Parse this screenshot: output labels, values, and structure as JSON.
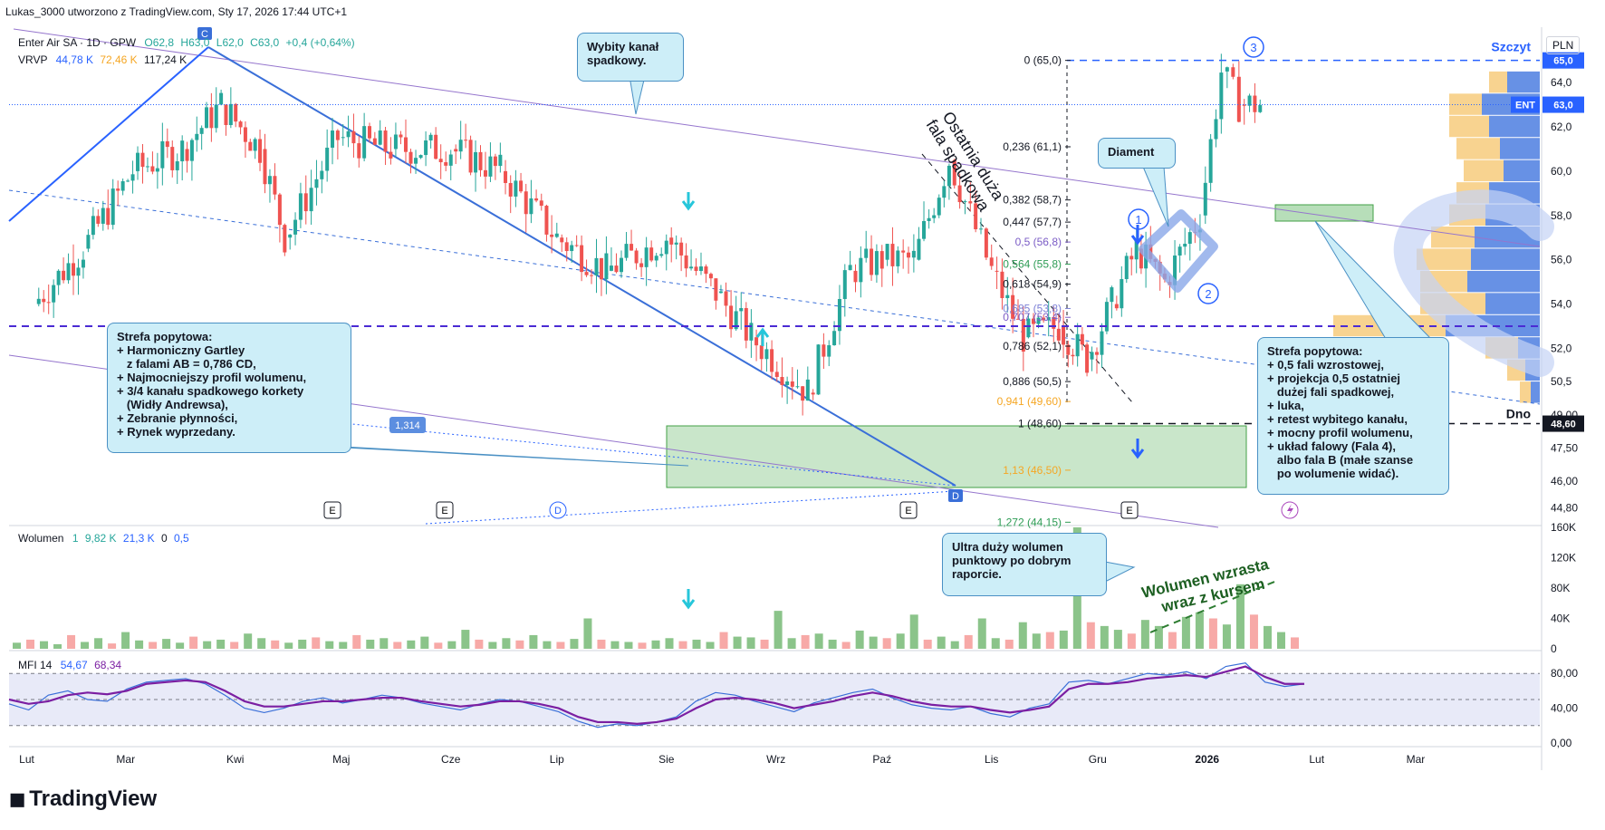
{
  "meta": {
    "snapshot_text": "Lukas_3000 utworzono z TradingView.com, Sty 17, 2026 17:44 UTC+1",
    "brand": "TradingView",
    "currency": "PLN"
  },
  "header": {
    "symbol": "Enter Air SA · 1D · GPW",
    "o": "O62,8",
    "h": "H63,0",
    "l": "L62,0",
    "c": "C63,0",
    "change": "+0,4 (+0,64%)",
    "vrvp_label": "VRVP",
    "vrvp_v1": "44,78 K",
    "vrvp_v2": "72,46 K",
    "vrvp_v3": "117,24 K",
    "volume_label": "Wolumen",
    "volume_len": "1",
    "volume_v1": "9,82 K",
    "volume_v2": "21,3 K",
    "volume_v3": "0",
    "volume_v4": "0,5",
    "mfi_label": "MFI 14",
    "mfi_v1": "54,67",
    "mfi_v2": "68,34"
  },
  "chart_data": [
    {
      "type": "line",
      "title": "Enter Air SA · 1D · GPW",
      "x_tick_labels": [
        "Lut",
        "Mar",
        "Kwi",
        "Maj",
        "Cze",
        "Lip",
        "Sie",
        "Wrz",
        "Paź",
        "Lis",
        "Gru",
        "2026",
        "Lut",
        "Mar"
      ],
      "y_tick_labels": [
        "64,0",
        "62,0",
        "60,0",
        "58,0",
        "56,0",
        "54,0",
        "52,0",
        "50,5",
        "49,00",
        "47,50",
        "46,00",
        "44,80"
      ],
      "ylim": [
        44.0,
        66.5
      ],
      "series": [
        {
          "name": "ENT",
          "x": [
            "2025-02-03",
            "2025-02-17",
            "2025-03-03",
            "2025-03-17",
            "2025-03-28",
            "2025-04-08",
            "2025-04-15",
            "2025-04-30",
            "2025-05-15",
            "2025-06-01",
            "2025-06-15",
            "2025-07-01",
            "2025-07-15",
            "2025-08-01",
            "2025-08-15",
            "2025-08-25",
            "2025-09-10",
            "2025-09-22",
            "2025-10-01",
            "2025-10-10",
            "2025-10-20",
            "2025-11-01",
            "2025-11-10",
            "2025-11-20",
            "2025-11-28",
            "2025-12-05",
            "2025-12-12",
            "2025-12-20",
            "2025-12-30",
            "2026-01-05",
            "2026-01-10",
            "2026-01-16"
          ],
          "values": [
            54.0,
            56.5,
            60.0,
            61.0,
            63.0,
            61.0,
            57.0,
            61.5,
            61.0,
            61.0,
            60.0,
            57.0,
            55.5,
            57.0,
            54.5,
            52.5,
            50.0,
            55.5,
            56.0,
            56.0,
            60.5,
            55.5,
            52.5,
            53.0,
            51.5,
            54.0,
            56.5,
            55.0,
            58.0,
            64.5,
            63.0,
            63.0
          ]
        }
      ],
      "last_price": "63,0",
      "fib_levels": [
        {
          "label": "0 (65,0)",
          "value": 65.0,
          "color": "#131722"
        },
        {
          "label": "0,236 (61,1)",
          "value": 61.1,
          "color": "#131722"
        },
        {
          "label": "0,382 (58,7)",
          "value": 58.7,
          "color": "#131722"
        },
        {
          "label": "0,447 (57,7)",
          "value": 57.7,
          "color": "#131722"
        },
        {
          "label": "0,5 (56,8)",
          "value": 56.8,
          "color": "#7b5cc6"
        },
        {
          "label": "0,564 (55,8)",
          "value": 55.8,
          "color": "#2e9c55"
        },
        {
          "label": "0,618 (54,9)",
          "value": 54.9,
          "color": "#131722"
        },
        {
          "label": "0,685 (53,8)",
          "value": 53.8,
          "color": "#7b7fd6"
        },
        {
          "label": "0,707 (53,4)",
          "value": 53.4,
          "color": "#7b5cc6"
        },
        {
          "label": "0,786 (52,1)",
          "value": 52.1,
          "color": "#131722"
        },
        {
          "label": "0,886 (50,5)",
          "value": 50.5,
          "color": "#131722"
        },
        {
          "label": "0,941 (49,60)",
          "value": 49.6,
          "color": "#f5a623"
        },
        {
          "label": "1 (48,60)",
          "value": 48.6,
          "color": "#131722"
        },
        {
          "label": "1,13 (46,50)",
          "value": 46.5,
          "color": "#f5a623"
        },
        {
          "label": "1,272 (44,15)",
          "value": 44.15,
          "color": "#2e9c55"
        }
      ],
      "price_tags": [
        {
          "text": "65,0",
          "value": 65.0,
          "color": "#2962ff"
        },
        {
          "text": "63,0",
          "value": 63.0,
          "color": "#2962ff"
        },
        {
          "text": "48,60",
          "value": 48.6,
          "color": "#131722"
        }
      ],
      "ent_tag": "ENT",
      "dashed_levels": [
        {
          "value": 65.0,
          "color": "#2962ff",
          "label": "Szczyt"
        },
        {
          "value": 48.6,
          "color": "#131722",
          "label": "Dno"
        },
        {
          "value": 53.0,
          "color": "#4b2bd4",
          "label": ""
        }
      ],
      "pattern_points": [
        {
          "label": "C",
          "date": "2025-03-28"
        },
        {
          "label": "D",
          "date": "2025-10-25"
        }
      ],
      "ratio_label": "1,314",
      "wave_labels": [
        "1",
        "2",
        "3"
      ],
      "event_markers": [
        "E",
        "E",
        "D",
        "E",
        "E"
      ],
      "vrvp_profile": [
        {
          "price": 64.0,
          "up": 0.1,
          "down": 0.18
        },
        {
          "price": 63.0,
          "up": 0.18,
          "down": 0.32
        },
        {
          "price": 62.0,
          "up": 0.22,
          "down": 0.28
        },
        {
          "price": 61.0,
          "up": 0.24,
          "down": 0.22
        },
        {
          "price": 60.0,
          "up": 0.22,
          "down": 0.2
        },
        {
          "price": 59.0,
          "up": 0.18,
          "down": 0.28
        },
        {
          "price": 58.0,
          "up": 0.2,
          "down": 0.3
        },
        {
          "price": 57.0,
          "up": 0.24,
          "down": 0.36
        },
        {
          "price": 56.0,
          "up": 0.3,
          "down": 0.38
        },
        {
          "price": 55.0,
          "up": 0.26,
          "down": 0.4
        },
        {
          "price": 54.0,
          "up": 0.36,
          "down": 0.3
        },
        {
          "price": 53.0,
          "up": 0.62,
          "down": 0.52
        },
        {
          "price": 52.0,
          "up": 0.18,
          "down": 0.12
        },
        {
          "price": 51.0,
          "up": 0.1,
          "down": 0.08
        },
        {
          "price": 50.0,
          "up": 0.06,
          "down": 0.05
        }
      ]
    },
    {
      "type": "bar",
      "title": "Wolumen",
      "y_tick_labels": [
        "160K",
        "120K",
        "80K",
        "40K",
        "0"
      ],
      "ylim": [
        0,
        160
      ],
      "note": "Volume bars (thousands), sampled",
      "values": [
        8,
        12,
        10,
        6,
        18,
        9,
        14,
        7,
        22,
        11,
        9,
        13,
        8,
        16,
        10,
        12,
        9,
        20,
        14,
        11,
        8,
        12,
        15,
        10,
        9,
        18,
        12,
        14,
        9,
        11,
        16,
        8,
        10,
        25,
        12,
        9,
        14,
        11,
        18,
        10,
        9,
        13,
        40,
        12,
        10,
        9,
        8,
        11,
        14,
        10,
        12,
        9,
        22,
        16,
        15,
        12,
        50,
        14,
        18,
        20,
        12,
        9,
        24,
        16,
        14,
        20,
        45,
        12,
        16,
        10,
        18,
        40,
        14,
        12,
        35,
        20,
        22,
        24,
        160,
        35,
        30,
        25,
        20,
        38,
        30,
        22,
        42,
        48,
        40,
        32,
        85,
        45,
        30,
        22,
        15
      ]
    },
    {
      "type": "line",
      "title": "MFI 14",
      "y_tick_labels": [
        "80,00",
        "40,00",
        "0,00"
      ],
      "ylim": [
        0,
        100
      ],
      "series": [
        {
          "name": "MFI",
          "values": [
            45,
            38,
            55,
            60,
            50,
            48,
            62,
            70,
            72,
            74,
            68,
            55,
            40,
            35,
            40,
            48,
            52,
            46,
            50,
            55,
            52,
            46,
            42,
            38,
            45,
            50,
            48,
            42,
            36,
            25,
            18,
            22,
            20,
            24,
            30,
            48,
            58,
            55,
            48,
            42,
            36,
            46,
            52,
            58,
            62,
            52,
            44,
            40,
            38,
            42,
            34,
            30,
            40,
            45,
            70,
            72,
            68,
            74,
            80,
            78,
            82,
            74,
            88,
            92,
            70,
            65,
            68
          ]
        },
        {
          "name": "Średnia",
          "values": [
            50,
            45,
            48,
            55,
            58,
            56,
            60,
            68,
            70,
            72,
            70,
            60,
            48,
            42,
            42,
            45,
            48,
            48,
            50,
            52,
            52,
            48,
            45,
            42,
            44,
            48,
            48,
            45,
            40,
            30,
            24,
            24,
            22,
            24,
            28,
            40,
            50,
            52,
            50,
            46,
            40,
            44,
            48,
            54,
            58,
            54,
            48,
            44,
            42,
            42,
            38,
            35,
            38,
            42,
            62,
            68,
            68,
            70,
            74,
            76,
            78,
            76,
            82,
            88,
            76,
            68,
            68
          ]
        }
      ]
    }
  ],
  "annotations": {
    "wybity": "Wybity kanał\nspadkowy.",
    "diament": "Diament",
    "fala": "Ostatnia duża\nfala spadkowa",
    "strefa1": "Strefa popytowa:\n+ Harmoniczny Gartley\n   z falami AB = 0,786 CD,\n+ Najmocniejszy profil wolumenu,\n+ 3/4 kanału spadkowego korkety\n   (Widły Andrewsa),\n+ Zebranie płynności,\n+ Rynek wyprzedany.",
    "strefa2": "Strefa popytowa:\n+ 0,5 fali wzrostowej,\n+ projekcja 0,5 ostatniej\n   dużej fali spadkowej,\n+ luka,\n+ retest wybitego kanału,\n+ mocny profil wolumenu,\n+ układ falowy (Fala 4),\n   albo fala B (małe szanse\n   po wolumenie widać).",
    "volume_note": "Ultra duży wolumen\npunktowy po dobrym\nraporcie.",
    "volume_rising": "Wolumen wzrasta\nwraz z kursem"
  },
  "colors": {
    "bull": "#26a69a",
    "bear": "#ef5350",
    "vol_bull": "#8bc48a",
    "vol_bear": "#f7a9a7",
    "channel": "#2962ff",
    "zone_fill": "#a5d6a7",
    "annotation_fill": "#cdeef8",
    "vrvp_up": "#f5c46b",
    "vrvp_down": "#4c7ee0"
  }
}
